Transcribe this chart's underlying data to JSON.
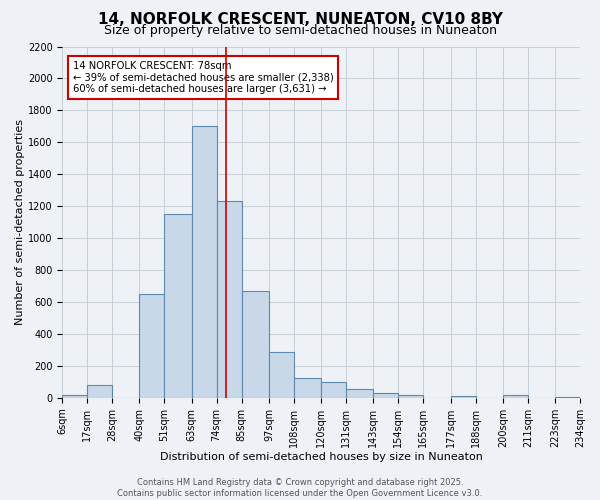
{
  "title": "14, NORFOLK CRESCENT, NUNEATON, CV10 8BY",
  "subtitle": "Size of property relative to semi-detached houses in Nuneaton",
  "xlabel": "Distribution of semi-detached houses by size in Nuneaton",
  "ylabel": "Number of semi-detached properties",
  "footer_line1": "Contains HM Land Registry data © Crown copyright and database right 2025.",
  "footer_line2": "Contains public sector information licensed under the Open Government Licence v3.0.",
  "annotation_title": "14 NORFOLK CRESCENT: 78sqm",
  "annotation_line1": "← 39% of semi-detached houses are smaller (2,338)",
  "annotation_line2": "60% of semi-detached houses are larger (3,631) →",
  "bin_edges": [
    6,
    17,
    28,
    40,
    51,
    63,
    74,
    85,
    97,
    108,
    120,
    131,
    143,
    154,
    165,
    177,
    188,
    200,
    211,
    223,
    234
  ],
  "bin_labels": [
    "6sqm",
    "17sqm",
    "28sqm",
    "40sqm",
    "51sqm",
    "63sqm",
    "74sqm",
    "85sqm",
    "97sqm",
    "108sqm",
    "120sqm",
    "131sqm",
    "143sqm",
    "154sqm",
    "165sqm",
    "177sqm",
    "188sqm",
    "200sqm",
    "211sqm",
    "223sqm",
    "234sqm"
  ],
  "counts": [
    20,
    80,
    0,
    650,
    1150,
    1700,
    1230,
    670,
    290,
    125,
    100,
    55,
    30,
    15,
    0,
    10,
    0,
    15,
    0,
    5
  ],
  "bar_face_color": "#c8d8e8",
  "bar_edge_color": "#5a8ab0",
  "bar_linewidth": 0.8,
  "vline_color": "#cc0000",
  "vline_x": 78,
  "grid_color": "#c8d0d8",
  "background_color": "#eef2f6",
  "ylim": [
    0,
    2200
  ],
  "yticks": [
    0,
    200,
    400,
    600,
    800,
    1000,
    1200,
    1400,
    1600,
    1800,
    2000,
    2200
  ],
  "annotation_box_facecolor": "#ffffff",
  "annotation_box_edgecolor": "#cc0000",
  "title_fontsize": 11,
  "subtitle_fontsize": 9,
  "footer_fontsize": 6,
  "tick_fontsize": 7,
  "ylabel_fontsize": 8,
  "xlabel_fontsize": 8
}
